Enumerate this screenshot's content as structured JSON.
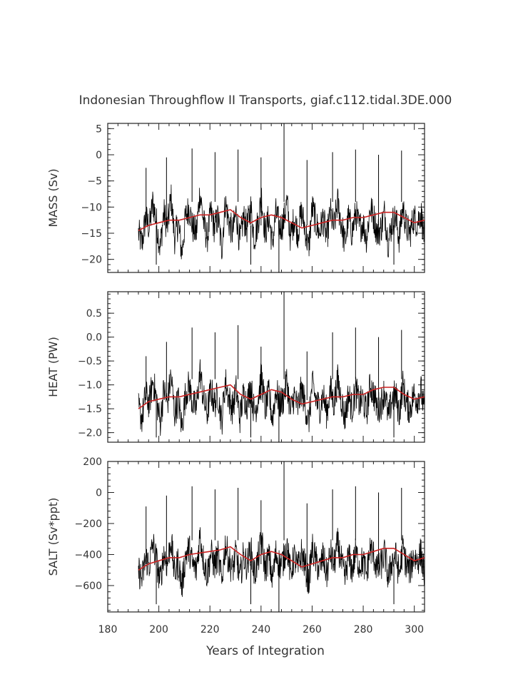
{
  "title": "Indonesian Throughflow II Transports, giaf.c112.tidal.3DE.000",
  "xlabel": "Years of Integration",
  "colors": {
    "raw": "#000000",
    "smoothed": "#cc2222",
    "axis": "#222222",
    "text": "#333333"
  },
  "chart_data": [
    {
      "type": "line",
      "panel": "mass",
      "ylabel": "MASS (Sv)",
      "xlim": [
        180,
        304
      ],
      "ylim": [
        -22.5,
        6
      ],
      "xticks": [
        180,
        200,
        220,
        240,
        260,
        280,
        300
      ],
      "yticks": [
        5,
        0,
        -5,
        -10,
        -15,
        -20
      ],
      "ytick_labels": [
        "5",
        "0",
        "−5",
        "−10",
        "−15",
        "−20"
      ],
      "series": [
        {
          "name": "raw",
          "x_start": 192,
          "x_end": 304,
          "values": [
            -15,
            -17,
            -12,
            -14,
            -9,
            -13,
            -18,
            -11,
            -14,
            -8,
            -16,
            -13,
            -19,
            -12,
            -10,
            -14,
            -15,
            -7,
            -13,
            -16,
            -11,
            -14,
            -12,
            -18,
            -9,
            -13,
            -15,
            -11,
            -17,
            -12,
            -14,
            -10,
            -16,
            -13,
            -8,
            -15,
            -12,
            -17,
            -11,
            -14,
            -13,
            -9,
            -16,
            -12,
            -15,
            -11,
            -14,
            -18,
            -10,
            -13,
            -15,
            -12,
            -16,
            -11,
            -14,
            -9,
            -13,
            -17,
            -12,
            -15,
            -11,
            -14,
            -13,
            -16,
            -10,
            -12,
            -15,
            -14,
            -11,
            -17,
            -13,
            -12,
            -16,
            -10,
            -14,
            -15,
            -12,
            -13,
            -11,
            -16
          ],
          "spikes": [
            {
              "x": 195,
              "y": -2.5
            },
            {
              "x": 203,
              "y": -0.5
            },
            {
              "x": 213,
              "y": 1.2
            },
            {
              "x": 222,
              "y": 0.5
            },
            {
              "x": 231,
              "y": 1.0
            },
            {
              "x": 240,
              "y": -0.5
            },
            {
              "x": 249,
              "y": 6
            },
            {
              "x": 247,
              "y": -22.5
            },
            {
              "x": 258,
              "y": -1
            },
            {
              "x": 268,
              "y": 0.5
            },
            {
              "x": 277,
              "y": 1.0
            },
            {
              "x": 286,
              "y": 0
            },
            {
              "x": 295,
              "y": 0.8
            },
            {
              "x": 199,
              "y": -21
            },
            {
              "x": 236,
              "y": -21
            },
            {
              "x": 292,
              "y": -21
            }
          ]
        },
        {
          "name": "smoothed",
          "x": [
            192,
            196,
            200,
            204,
            208,
            212,
            216,
            220,
            224,
            228,
            232,
            236,
            240,
            244,
            248,
            252,
            256,
            260,
            264,
            268,
            272,
            276,
            280,
            284,
            288,
            292,
            296,
            300,
            304
          ],
          "values": [
            -14.5,
            -13.5,
            -13,
            -12.5,
            -12.5,
            -12,
            -11.5,
            -11.5,
            -11,
            -10.5,
            -12,
            -13,
            -12,
            -11.5,
            -12,
            -13,
            -14,
            -13.5,
            -13,
            -12.5,
            -12.5,
            -12,
            -12,
            -11.5,
            -11,
            -11,
            -12,
            -13,
            -12.5
          ]
        }
      ]
    },
    {
      "type": "line",
      "panel": "heat",
      "ylabel": "HEAT (PW)",
      "xlim": [
        180,
        304
      ],
      "ylim": [
        -2.2,
        0.95
      ],
      "xticks": [
        180,
        200,
        220,
        240,
        260,
        280,
        300
      ],
      "yticks": [
        0.5,
        0.0,
        -0.5,
        -1.0,
        -1.5,
        -2.0
      ],
      "ytick_labels": [
        "0.5",
        "0.0",
        "−0.5",
        "−1.0",
        "−1.5",
        "−2.0"
      ],
      "series": [
        {
          "name": "raw",
          "x_start": 192,
          "x_end": 304,
          "values": [
            -1.5,
            -1.7,
            -1.2,
            -1.4,
            -0.9,
            -1.3,
            -1.8,
            -1.1,
            -1.4,
            -0.8,
            -1.6,
            -1.3,
            -1.9,
            -1.2,
            -1.0,
            -1.4,
            -1.5,
            -0.7,
            -1.3,
            -1.6,
            -1.1,
            -1.4,
            -1.2,
            -1.8,
            -0.9,
            -1.3,
            -1.5,
            -1.1,
            -1.7,
            -1.2,
            -1.4,
            -1.0,
            -1.6,
            -1.3,
            -0.8,
            -1.5,
            -1.2,
            -1.7,
            -1.1,
            -1.4,
            -1.3,
            -0.9,
            -1.6,
            -1.2,
            -1.5,
            -1.1,
            -1.4,
            -1.8,
            -1.0,
            -1.3,
            -1.5,
            -1.2,
            -1.6,
            -1.1,
            -1.4,
            -0.9,
            -1.3,
            -1.7,
            -1.2,
            -1.5,
            -1.1,
            -1.4,
            -1.3,
            -1.6,
            -1.0,
            -1.2,
            -1.5,
            -1.4,
            -1.1,
            -1.7,
            -1.3,
            -1.2,
            -1.6,
            -1.0,
            -1.4,
            -1.5,
            -1.2,
            -1.3,
            -1.1,
            -1.6
          ],
          "spikes": [
            {
              "x": 195,
              "y": -0.4
            },
            {
              "x": 203,
              "y": -0.1
            },
            {
              "x": 213,
              "y": 0.2
            },
            {
              "x": 222,
              "y": 0.1
            },
            {
              "x": 231,
              "y": 0.25
            },
            {
              "x": 240,
              "y": -0.2
            },
            {
              "x": 249,
              "y": 0.95
            },
            {
              "x": 247,
              "y": -2.2
            },
            {
              "x": 258,
              "y": -0.3
            },
            {
              "x": 268,
              "y": 0.1
            },
            {
              "x": 277,
              "y": 0.2
            },
            {
              "x": 286,
              "y": 0.0
            },
            {
              "x": 295,
              "y": 0.15
            },
            {
              "x": 199,
              "y": -2.1
            },
            {
              "x": 236,
              "y": -2.1
            },
            {
              "x": 292,
              "y": -2.1
            }
          ]
        },
        {
          "name": "smoothed",
          "x": [
            192,
            196,
            200,
            204,
            208,
            212,
            216,
            220,
            224,
            228,
            232,
            236,
            240,
            244,
            248,
            252,
            256,
            260,
            264,
            268,
            272,
            276,
            280,
            284,
            288,
            292,
            296,
            300,
            304
          ],
          "values": [
            -1.5,
            -1.35,
            -1.3,
            -1.25,
            -1.25,
            -1.2,
            -1.15,
            -1.1,
            -1.05,
            -1.0,
            -1.2,
            -1.3,
            -1.2,
            -1.1,
            -1.15,
            -1.3,
            -1.4,
            -1.35,
            -1.3,
            -1.25,
            -1.25,
            -1.2,
            -1.2,
            -1.1,
            -1.05,
            -1.05,
            -1.2,
            -1.3,
            -1.25
          ]
        }
      ]
    },
    {
      "type": "line",
      "panel": "salt",
      "ylabel": "SALT (Sv*ppt)",
      "xlim": [
        180,
        304
      ],
      "ylim": [
        -770,
        200
      ],
      "xticks": [
        180,
        200,
        220,
        240,
        260,
        280,
        300
      ],
      "xtick_labels": [
        "180",
        "200",
        "220",
        "240",
        "260",
        "280",
        "300"
      ],
      "yticks": [
        200,
        0,
        -200,
        -400,
        -600
      ],
      "ytick_labels": [
        "200",
        "0",
        "−200",
        "−400",
        "−600"
      ],
      "series": [
        {
          "name": "raw",
          "x_start": 192,
          "x_end": 304,
          "values": [
            -500,
            -560,
            -420,
            -470,
            -330,
            -440,
            -580,
            -390,
            -470,
            -300,
            -530,
            -440,
            -610,
            -410,
            -360,
            -470,
            -500,
            -270,
            -440,
            -530,
            -390,
            -470,
            -410,
            -580,
            -330,
            -440,
            -500,
            -390,
            -560,
            -410,
            -470,
            -360,
            -530,
            -440,
            -300,
            -500,
            -410,
            -560,
            -390,
            -470,
            -440,
            -330,
            -530,
            -410,
            -500,
            -390,
            -470,
            -580,
            -360,
            -440,
            -500,
            -410,
            -530,
            -390,
            -470,
            -330,
            -440,
            -560,
            -410,
            -500,
            -390,
            -470,
            -440,
            -530,
            -360,
            -410,
            -500,
            -470,
            -390,
            -560,
            -440,
            -410,
            -530,
            -360,
            -470,
            -500,
            -410,
            -440,
            -390,
            -530
          ],
          "spikes": [
            {
              "x": 195,
              "y": -90
            },
            {
              "x": 203,
              "y": -20
            },
            {
              "x": 213,
              "y": 40
            },
            {
              "x": 222,
              "y": 20
            },
            {
              "x": 231,
              "y": 30
            },
            {
              "x": 240,
              "y": -50
            },
            {
              "x": 249,
              "y": 200
            },
            {
              "x": 247,
              "y": -770
            },
            {
              "x": 258,
              "y": -70
            },
            {
              "x": 268,
              "y": 20
            },
            {
              "x": 277,
              "y": 40
            },
            {
              "x": 286,
              "y": 0
            },
            {
              "x": 295,
              "y": 30
            },
            {
              "x": 199,
              "y": -720
            },
            {
              "x": 236,
              "y": -720
            },
            {
              "x": 292,
              "y": -720
            }
          ]
        },
        {
          "name": "smoothed",
          "x": [
            192,
            196,
            200,
            204,
            208,
            212,
            216,
            220,
            224,
            228,
            232,
            236,
            240,
            244,
            248,
            252,
            256,
            260,
            264,
            268,
            272,
            276,
            280,
            284,
            288,
            292,
            296,
            300,
            304
          ],
          "values": [
            -500,
            -460,
            -440,
            -420,
            -420,
            -400,
            -390,
            -380,
            -370,
            -350,
            -400,
            -440,
            -400,
            -380,
            -400,
            -440,
            -480,
            -460,
            -440,
            -420,
            -420,
            -400,
            -400,
            -380,
            -360,
            -360,
            -400,
            -440,
            -420
          ]
        }
      ]
    }
  ]
}
